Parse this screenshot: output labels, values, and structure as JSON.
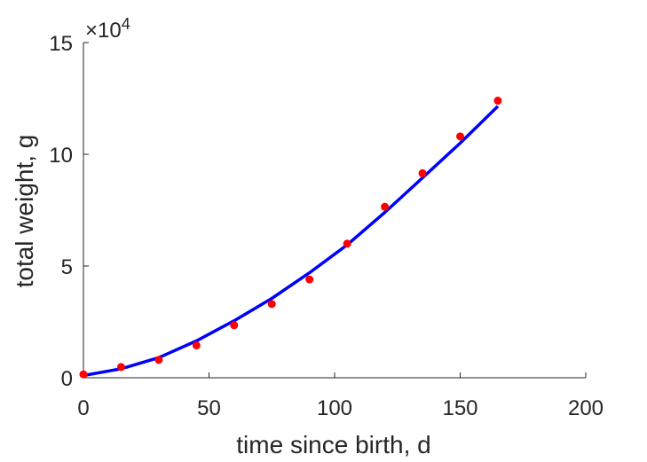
{
  "chart_data": {
    "type": "scatter",
    "title": "",
    "xlabel": "time since birth, d",
    "ylabel": "total weight, g",
    "xlim": [
      0,
      200
    ],
    "ylim": [
      0,
      150000
    ],
    "x_ticks": [
      0,
      50,
      100,
      150,
      200
    ],
    "y_ticks": [
      0,
      50000,
      100000,
      150000
    ],
    "x_tick_labels": [
      "0",
      "50",
      "100",
      "150",
      "200"
    ],
    "y_tick_labels": [
      "0",
      "5",
      "10",
      "15"
    ],
    "y_exponent_label": {
      "base": "×10",
      "exponent": "4"
    },
    "grid": false,
    "legend": "none",
    "series": [
      {
        "kind": "points",
        "color": "#ff0000",
        "x": [
          0,
          15,
          30,
          45,
          60,
          75,
          90,
          105,
          120,
          135,
          150,
          165
        ],
        "y": [
          1500,
          4800,
          8000,
          14500,
          23500,
          33000,
          44000,
          60000,
          76500,
          91500,
          108000,
          124000
        ]
      },
      {
        "kind": "line",
        "color": "#0000ff",
        "x": [
          0,
          15,
          30,
          45,
          60,
          75,
          90,
          105,
          120,
          135,
          150,
          165
        ],
        "y": [
          1000,
          4000,
          9000,
          16500,
          25500,
          35500,
          47000,
          59500,
          74000,
          89500,
          105000,
          121500
        ]
      }
    ]
  }
}
